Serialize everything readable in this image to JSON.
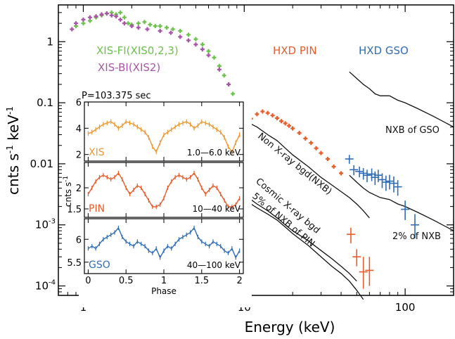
{
  "chart_data": {
    "type": "scatter",
    "xlabel": "Energy (keV)",
    "ylabel": "cnts s-1 keV-1",
    "ylabel_parts": {
      "base": "cnts s",
      "sup1": "-1",
      "mid": " keV",
      "sup2": "-1"
    },
    "xscale": "log",
    "yscale": "log",
    "xlim": [
      0.7,
      200
    ],
    "ylim": [
      7e-05,
      4
    ],
    "x_ticks": [
      {
        "value": 1,
        "label": "1"
      },
      {
        "value": 10,
        "label": "10"
      },
      {
        "value": 100,
        "label": "100"
      }
    ],
    "y_ticks": [
      {
        "value": 1,
        "label": "1"
      },
      {
        "value": 0.1,
        "label": "0.1"
      },
      {
        "value": 0.01,
        "label": "0.01"
      },
      {
        "value": 0.001,
        "label": "10",
        "sup": "-3"
      },
      {
        "value": 0.0001,
        "label": "10",
        "sup": "-4"
      }
    ],
    "series": [
      {
        "name": "XIS-FI(XIS0,2,3)",
        "color": "#6cc24a",
        "style": "points",
        "x": [
          0.9,
          1.0,
          1.1,
          1.2,
          1.3,
          1.4,
          1.5,
          1.6,
          1.7,
          1.8,
          1.9,
          2.0,
          2.2,
          2.4,
          2.6,
          2.8,
          3.0,
          3.3,
          3.6,
          4.0,
          4.5,
          5.0,
          5.5,
          6.0,
          6.5,
          7.0,
          7.5,
          8.0,
          8.5,
          9.0,
          9.5,
          10.0
        ],
        "y": [
          1.8,
          2.0,
          2.2,
          2.5,
          2.7,
          2.9,
          3.0,
          2.8,
          3.0,
          2.5,
          2.0,
          1.9,
          2.0,
          2.1,
          1.9,
          1.8,
          1.8,
          1.7,
          1.6,
          1.5,
          1.3,
          1.1,
          0.9,
          0.7,
          0.55,
          0.4,
          0.28,
          0.2,
          0.14,
          0.1,
          0.07,
          0.05
        ]
      },
      {
        "name": "XIS-BI(XIS2)",
        "color": "#a855a8",
        "style": "points",
        "x": [
          0.85,
          0.9,
          1.0,
          1.1,
          1.2,
          1.3,
          1.4,
          1.5,
          1.6,
          1.7,
          1.8,
          2.0,
          2.2,
          2.5,
          3.0,
          3.5,
          4.0,
          4.5,
          5.0,
          5.5,
          6.0,
          7.0,
          8.0,
          9.0
        ],
        "y": [
          1.6,
          2.0,
          2.3,
          2.5,
          2.6,
          2.8,
          2.9,
          2.7,
          2.6,
          2.3,
          2.0,
          1.8,
          1.7,
          1.6,
          1.5,
          1.4,
          1.2,
          1.05,
          0.9,
          0.75,
          0.6,
          0.35,
          0.2,
          0.1
        ]
      },
      {
        "name": "HXD PIN",
        "color": "#e85c2a",
        "style": "points",
        "x": [
          11,
          12,
          13,
          14,
          15,
          16,
          17,
          18,
          19,
          20,
          22,
          24,
          26,
          28,
          30,
          33,
          36,
          40
        ],
        "y": [
          0.055,
          0.065,
          0.072,
          0.068,
          0.062,
          0.056,
          0.05,
          0.046,
          0.042,
          0.038,
          0.032,
          0.026,
          0.022,
          0.018,
          0.015,
          0.012,
          0.009,
          0.007
        ]
      },
      {
        "name": "HXD PIN high",
        "color": "#e85c2a",
        "style": "crosses",
        "x": [
          46,
          50,
          55,
          60
        ],
        "y": [
          0.0007,
          0.0003,
          0.00017,
          0.00018
        ],
        "yerr_lo": [
          0.0005,
          0.00021,
          9e-05,
          0.0001
        ],
        "yerr_hi": [
          0.0009,
          0.0004,
          0.0003,
          0.0003
        ]
      },
      {
        "name": "HXD GSO",
        "color": "#2f6db6",
        "style": "crosses",
        "x": [
          45,
          48,
          52,
          55,
          58,
          62,
          65,
          68,
          72,
          76,
          80,
          85,
          90,
          100,
          115
        ],
        "y": [
          0.012,
          0.008,
          0.0075,
          0.007,
          0.0065,
          0.0068,
          0.006,
          0.0065,
          0.0055,
          0.005,
          0.0052,
          0.0048,
          0.0042,
          0.0018,
          0.001
        ],
        "yerr_lo": [
          0.01,
          0.0065,
          0.006,
          0.0055,
          0.005,
          0.0052,
          0.0045,
          0.005,
          0.004,
          0.0036,
          0.0038,
          0.0034,
          0.003,
          0.0012,
          0.0006
        ],
        "yerr_hi": [
          0.014,
          0.0095,
          0.009,
          0.0085,
          0.008,
          0.0084,
          0.0075,
          0.008,
          0.007,
          0.0064,
          0.0066,
          0.0062,
          0.0054,
          0.0025,
          0.0015
        ]
      },
      {
        "name": "NXB of GSO",
        "color": "#111111",
        "style": "line",
        "x": [
          45,
          50,
          55,
          60,
          65,
          70,
          80,
          90,
          100,
          120,
          150,
          200
        ],
        "y": [
          0.32,
          0.25,
          0.2,
          0.17,
          0.14,
          0.13,
          0.13,
          0.11,
          0.1,
          0.08,
          0.06,
          0.04
        ]
      },
      {
        "name": "Non X-ray bgd(NXB)",
        "color": "#111111",
        "style": "line",
        "x": [
          10,
          11,
          12,
          14,
          16,
          18,
          20,
          25,
          30,
          35,
          40,
          45,
          50,
          55,
          60
        ],
        "y": [
          0.05,
          0.045,
          0.04,
          0.03,
          0.024,
          0.018,
          0.014,
          0.009,
          0.006,
          0.0045,
          0.0035,
          0.0028,
          0.0022,
          0.0017,
          0.0013
        ]
      },
      {
        "name": "Cosmic X-ray bgd",
        "color": "#111111",
        "style": "line",
        "x": [
          10,
          11,
          12,
          14,
          16,
          18,
          20,
          25,
          30,
          35,
          40,
          45,
          50
        ],
        "y": [
          0.0028,
          0.0026,
          0.0022,
          0.0017,
          0.0013,
          0.001,
          0.0008,
          0.00055,
          0.00038,
          0.00028,
          0.00021,
          0.00016,
          0.00012
        ]
      },
      {
        "name": "5% of NXB of PIN",
        "color": "#111111",
        "style": "line",
        "x": [
          10,
          11,
          12,
          14,
          16,
          18,
          20,
          25,
          30,
          35,
          40,
          45,
          50,
          55
        ],
        "y": [
          0.0025,
          0.0022,
          0.0019,
          0.0015,
          0.0012,
          0.00092,
          0.00072,
          0.00046,
          0.0003,
          0.00021,
          0.00016,
          0.00012,
          8.5e-05,
          6e-05
        ]
      },
      {
        "name": "2% of NXB",
        "color": "#111111",
        "style": "line",
        "x": [
          45,
          50,
          55,
          60,
          70,
          80,
          90,
          100,
          120,
          150,
          200
        ],
        "y": [
          0.0065,
          0.005,
          0.004,
          0.0034,
          0.0028,
          0.0026,
          0.0022,
          0.002,
          0.0016,
          0.0012,
          0.0008
        ]
      }
    ],
    "annotations": [
      {
        "text": "XIS-FI(XIS0,2,3)",
        "color": "#6cc24a"
      },
      {
        "text": "XIS-BI(XIS2)",
        "color": "#a855a8"
      },
      {
        "text": "HXD PIN",
        "color": "#e85c2a"
      },
      {
        "text": "HXD GSO",
        "color": "#2f6db6"
      },
      {
        "text": "NXB of GSO",
        "color": "#111111"
      },
      {
        "text": "Non X-ray bgd(NXB)",
        "color": "#111111"
      },
      {
        "text": "Cosmic X-ray bgd",
        "color": "#111111"
      },
      {
        "text": "5% of NXB of PIN",
        "color": "#111111"
      },
      {
        "text": "2% of NXB",
        "color": "#111111"
      }
    ],
    "inset": {
      "title": "P=103.375 sec",
      "xlabel": "Phase",
      "xlim": [
        -0.05,
        2.05
      ],
      "x_ticks": [
        0,
        0.5,
        1,
        1.5,
        2
      ],
      "x_tick_labels": [
        "0",
        "0.5",
        "1",
        "1.5",
        "2"
      ],
      "y_label": "cnts s-1",
      "y_label_parts": {
        "base": "cnts s",
        "sup": "-1"
      },
      "panels": [
        {
          "name": "XIS",
          "band": "1.0—6.0 keV",
          "color": "#f0962e",
          "ylim": [
            1.5,
            6.0
          ],
          "y_ticks": [
            2,
            4,
            6
          ],
          "y_tick_labels": [
            "2",
            "4",
            "6"
          ],
          "phase": [
            0,
            0.05,
            0.1,
            0.15,
            0.2,
            0.25,
            0.3,
            0.35,
            0.4,
            0.45,
            0.5,
            0.55,
            0.6,
            0.65,
            0.7,
            0.75,
            0.8,
            0.85,
            0.9,
            0.95,
            1.0
          ],
          "values": [
            3.6,
            3.7,
            3.9,
            4.1,
            4.3,
            4.4,
            4.5,
            4.3,
            4.0,
            4.2,
            4.5,
            4.4,
            4.3,
            4.1,
            3.9,
            3.7,
            3.3,
            2.6,
            2.2,
            2.9,
            3.5
          ]
        },
        {
          "name": "PIN",
          "band": "10—40 keV",
          "color": "#e85c2a",
          "ylim": [
            1.3,
            2.6
          ],
          "y_ticks": [
            1.5,
            2
          ],
          "y_tick_labels": [
            "1.5",
            "2"
          ],
          "phase": [
            0,
            0.05,
            0.1,
            0.15,
            0.2,
            0.25,
            0.3,
            0.35,
            0.4,
            0.45,
            0.5,
            0.55,
            0.6,
            0.65,
            0.7,
            0.75,
            0.8,
            0.85,
            0.9,
            0.95,
            1.0
          ],
          "values": [
            1.85,
            2.0,
            2.15,
            2.25,
            2.3,
            2.25,
            2.2,
            2.25,
            2.35,
            2.2,
            2.0,
            1.85,
            1.95,
            2.05,
            2.0,
            1.85,
            1.7,
            1.55,
            1.55,
            1.6,
            1.75
          ]
        },
        {
          "name": "GSO",
          "band": "40—100 keV",
          "color": "#2f6db6",
          "ylim": [
            5.25,
            6.45
          ],
          "y_ticks": [
            5.5,
            6
          ],
          "y_tick_labels": [
            "5.5",
            "6"
          ],
          "phase": [
            0,
            0.05,
            0.1,
            0.15,
            0.2,
            0.25,
            0.3,
            0.35,
            0.4,
            0.45,
            0.5,
            0.55,
            0.6,
            0.65,
            0.7,
            0.75,
            0.8,
            0.85,
            0.9,
            0.95,
            1.0
          ],
          "values": [
            5.8,
            5.85,
            5.8,
            5.9,
            6.0,
            6.05,
            6.1,
            6.15,
            6.25,
            6.05,
            5.95,
            5.9,
            5.85,
            5.95,
            5.9,
            5.85,
            5.75,
            5.7,
            5.8,
            5.6,
            5.75
          ]
        }
      ]
    }
  }
}
